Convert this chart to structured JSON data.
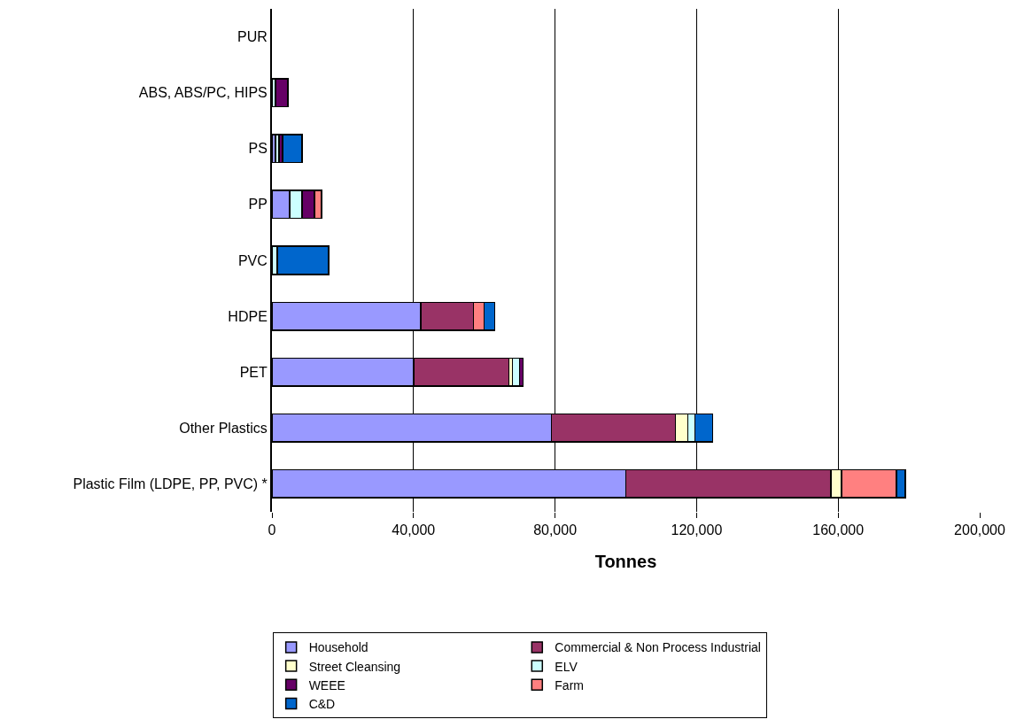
{
  "chart_data": {
    "type": "bar",
    "orientation": "horizontal",
    "stacked": true,
    "xlabel": "Tonnes",
    "categories": [
      "PUR",
      "ABS, ABS/PC, HIPS",
      "PS",
      "PP",
      "PVC",
      "HDPE",
      "PET",
      "Other Plastics",
      "Plastic Film (LDPE, PP, PVC) *"
    ],
    "series": [
      {
        "name": "Household",
        "color": "#9999ff",
        "values": [
          null,
          null,
          1000,
          5000,
          null,
          42000,
          40000,
          79000,
          100000
        ]
      },
      {
        "name": "Commercial & Non Process Industrial",
        "color": "#993366",
        "values": [
          null,
          null,
          null,
          null,
          null,
          15000,
          27000,
          35000,
          58000
        ]
      },
      {
        "name": "Street Cleansing",
        "color": "#ffffcc",
        "values": [
          null,
          null,
          null,
          null,
          null,
          null,
          1000,
          3500,
          3000
        ]
      },
      {
        "name": "ELV",
        "color": "#ccffff",
        "values": [
          null,
          1000,
          1000,
          3500,
          1500,
          null,
          2000,
          2000,
          null
        ]
      },
      {
        "name": "WEEE",
        "color": "#660066",
        "values": [
          null,
          3500,
          1000,
          3500,
          null,
          null,
          1000,
          null,
          null
        ]
      },
      {
        "name": "Farm",
        "color": "#ff8080",
        "values": [
          null,
          null,
          null,
          2000,
          null,
          3000,
          null,
          null,
          15500
        ]
      },
      {
        "name": "C&D",
        "color": "#0066cc",
        "values": [
          null,
          null,
          5500,
          null,
          14500,
          3000,
          null,
          5000,
          2500
        ]
      }
    ],
    "xlim": [
      0,
      200000
    ],
    "xticks": [
      0,
      {
        "value": 40000,
        "label": "40,000"
      },
      {
        "value": 80000,
        "label": "80,000"
      },
      {
        "value": 120000,
        "label": "120,000"
      },
      {
        "value": 160000,
        "label": "160,000"
      },
      {
        "value": 200000,
        "label": "200,000"
      }
    ],
    "grid": "x",
    "legend": "bottom"
  }
}
